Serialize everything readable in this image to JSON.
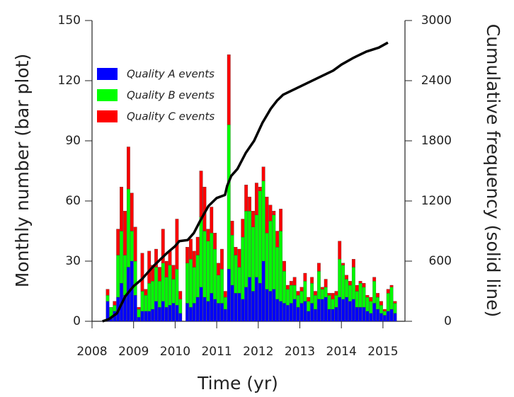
{
  "chart_data": {
    "type": "bar",
    "stacked": true,
    "xlabel": "Time (yr)",
    "ylabel": "Monthly number (bar plot)",
    "y2label": "Cumulative frequency (solid line)",
    "xlim": [
      2008,
      2015.53
    ],
    "xticks": [
      2008,
      2009,
      2010,
      2011,
      2012,
      2013,
      2014,
      2015
    ],
    "ylim": [
      0,
      150
    ],
    "yticks": [
      0,
      30,
      60,
      90,
      120,
      150
    ],
    "y2lim": [
      0,
      3000
    ],
    "y2ticks": [
      0,
      600,
      1200,
      1800,
      2400,
      3000
    ],
    "legend": "upper left",
    "x": [
      2008.375,
      2008.458,
      2008.542,
      2008.625,
      2008.708,
      2008.792,
      2008.875,
      2008.958,
      2009.042,
      2009.125,
      2009.208,
      2009.292,
      2009.375,
      2009.458,
      2009.542,
      2009.625,
      2009.708,
      2009.792,
      2009.875,
      2009.958,
      2010.042,
      2010.125,
      2010.208,
      2010.292,
      2010.375,
      2010.458,
      2010.542,
      2010.625,
      2010.708,
      2010.792,
      2010.875,
      2010.958,
      2011.042,
      2011.125,
      2011.208,
      2011.292,
      2011.375,
      2011.458,
      2011.542,
      2011.625,
      2011.708,
      2011.792,
      2011.875,
      2011.958,
      2012.042,
      2012.125,
      2012.208,
      2012.292,
      2012.375,
      2012.458,
      2012.542,
      2012.625,
      2012.708,
      2012.792,
      2012.875,
      2012.958,
      2013.042,
      2013.125,
      2013.208,
      2013.292,
      2013.375,
      2013.458,
      2013.542,
      2013.625,
      2013.708,
      2013.792,
      2013.875,
      2013.958,
      2014.042,
      2014.125,
      2014.208,
      2014.292,
      2014.375,
      2014.458,
      2014.542,
      2014.625,
      2014.708,
      2014.792,
      2014.875,
      2014.958,
      2015.042,
      2015.125,
      2015.208,
      2015.292
    ],
    "series": [
      {
        "name": "Quality A events",
        "color": "#0000ff",
        "values": [
          10,
          2,
          5,
          12,
          19,
          13,
          27,
          30,
          13,
          2,
          5,
          5,
          5,
          6,
          10,
          7,
          10,
          7,
          8,
          9,
          8,
          4,
          0,
          9,
          7,
          9,
          12,
          17,
          12,
          10,
          14,
          11,
          9,
          9,
          6,
          26,
          18,
          14,
          14,
          11,
          17,
          22,
          15,
          22,
          19,
          30,
          16,
          15,
          16,
          11,
          10,
          9,
          8,
          9,
          11,
          7,
          9,
          10,
          5,
          9,
          6,
          11,
          11,
          12,
          6,
          6,
          7,
          12,
          11,
          12,
          10,
          11,
          7,
          7,
          7,
          5,
          4,
          9,
          6,
          4,
          3,
          5,
          6,
          4
        ]
      },
      {
        "name": "Quality B events",
        "color": "#00ff00",
        "values": [
          3,
          5,
          3,
          21,
          26,
          20,
          39,
          15,
          17,
          4,
          10,
          8,
          14,
          14,
          17,
          13,
          19,
          15,
          20,
          12,
          18,
          7,
          0,
          20,
          24,
          18,
          21,
          35,
          33,
          30,
          30,
          25,
          14,
          17,
          6,
          72,
          25,
          19,
          13,
          31,
          38,
          33,
          32,
          31,
          46,
          40,
          28,
          35,
          37,
          26,
          35,
          16,
          8,
          9,
          7,
          6,
          6,
          10,
          5,
          10,
          7,
          14,
          5,
          5,
          7,
          5,
          6,
          19,
          17,
          9,
          8,
          16,
          8,
          12,
          10,
          7,
          6,
          11,
          6,
          4,
          2,
          9,
          11,
          5
        ]
      },
      {
        "name": "Quality C events",
        "color": "#ff0000",
        "values": [
          3,
          0,
          2,
          13,
          22,
          22,
          21,
          19,
          17,
          1,
          19,
          3,
          16,
          8,
          9,
          7,
          17,
          8,
          7,
          7,
          25,
          4,
          0,
          8,
          10,
          8,
          9,
          23,
          22,
          6,
          13,
          8,
          6,
          10,
          3,
          35,
          7,
          4,
          9,
          9,
          13,
          7,
          8,
          16,
          2,
          7,
          18,
          8,
          2,
          8,
          11,
          5,
          2,
          2,
          4,
          2,
          2,
          4,
          2,
          3,
          2,
          4,
          1,
          4,
          1,
          3,
          2,
          9,
          1,
          2,
          2,
          4,
          3,
          1,
          2,
          1,
          2,
          2,
          2,
          2,
          1,
          2,
          1,
          1
        ]
      }
    ],
    "cumulative": {
      "axis": "y2",
      "color": "#000000",
      "x": [
        2008.25,
        2008.4,
        2008.6,
        2008.8,
        2009.0,
        2009.2,
        2009.5,
        2009.8,
        2010.0,
        2010.1,
        2010.3,
        2010.45,
        2010.6,
        2010.8,
        2011.0,
        2011.2,
        2011.25,
        2011.35,
        2011.5,
        2011.7,
        2011.9,
        2012.1,
        2012.3,
        2012.45,
        2012.6,
        2012.9,
        2013.2,
        2013.5,
        2013.8,
        2014.0,
        2014.3,
        2014.6,
        2014.9,
        2015.12
      ],
      "values": [
        0,
        20,
        80,
        250,
        350,
        420,
        560,
        680,
        750,
        800,
        810,
        880,
        1000,
        1150,
        1230,
        1260,
        1350,
        1450,
        1520,
        1680,
        1800,
        1980,
        2120,
        2200,
        2260,
        2320,
        2380,
        2440,
        2500,
        2560,
        2630,
        2690,
        2730,
        2780
      ]
    }
  }
}
